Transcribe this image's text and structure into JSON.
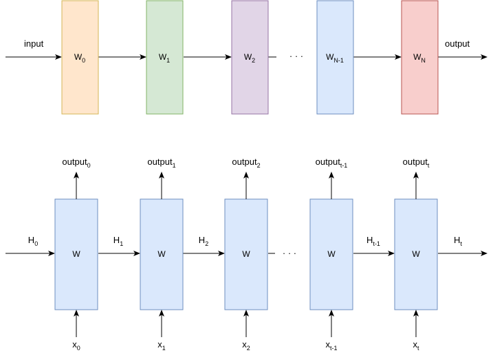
{
  "top": {
    "input_label": "input",
    "output_label": "output",
    "ellipsis": "· · ·",
    "blocks": [
      {
        "base": "W",
        "sub": "0",
        "fill": "#ffe6cc",
        "stroke": "#d6b656"
      },
      {
        "base": "W",
        "sub": "1",
        "fill": "#d5e8d4",
        "stroke": "#82b366"
      },
      {
        "base": "W",
        "sub": "2",
        "fill": "#e1d5e7",
        "stroke": "#9673a6"
      },
      {
        "base": "W",
        "sub": "N-1",
        "fill": "#dae8fc",
        "stroke": "#6c8ebf"
      },
      {
        "base": "W",
        "sub": "N",
        "fill": "#f8cecc",
        "stroke": "#b85450"
      }
    ]
  },
  "bottom": {
    "cell_fill": "#dae8fc",
    "cell_stroke": "#6c8ebf",
    "ellipsis": "· · ·",
    "cells": [
      {
        "label": "W",
        "output": {
          "base": "output",
          "sub": "0"
        },
        "input": {
          "base": "x",
          "sub": "0"
        }
      },
      {
        "label": "W",
        "output": {
          "base": "output",
          "sub": "1"
        },
        "input": {
          "base": "x",
          "sub": "1"
        }
      },
      {
        "label": "W",
        "output": {
          "base": "output",
          "sub": "2"
        },
        "input": {
          "base": "x",
          "sub": "2"
        }
      },
      {
        "label": "W",
        "output": {
          "base": "output",
          "sub": "t-1"
        },
        "input": {
          "base": "x",
          "sub": "t-1"
        }
      },
      {
        "label": "W",
        "output": {
          "base": "output",
          "sub": "t"
        },
        "input": {
          "base": "x",
          "sub": "t"
        }
      }
    ],
    "hidden": [
      {
        "base": "H",
        "sub": "0"
      },
      {
        "base": "H",
        "sub": "1"
      },
      {
        "base": "H",
        "sub": "2"
      },
      {
        "base": "H",
        "sub": "t-1"
      },
      {
        "base": "H",
        "sub": "t"
      }
    ]
  }
}
